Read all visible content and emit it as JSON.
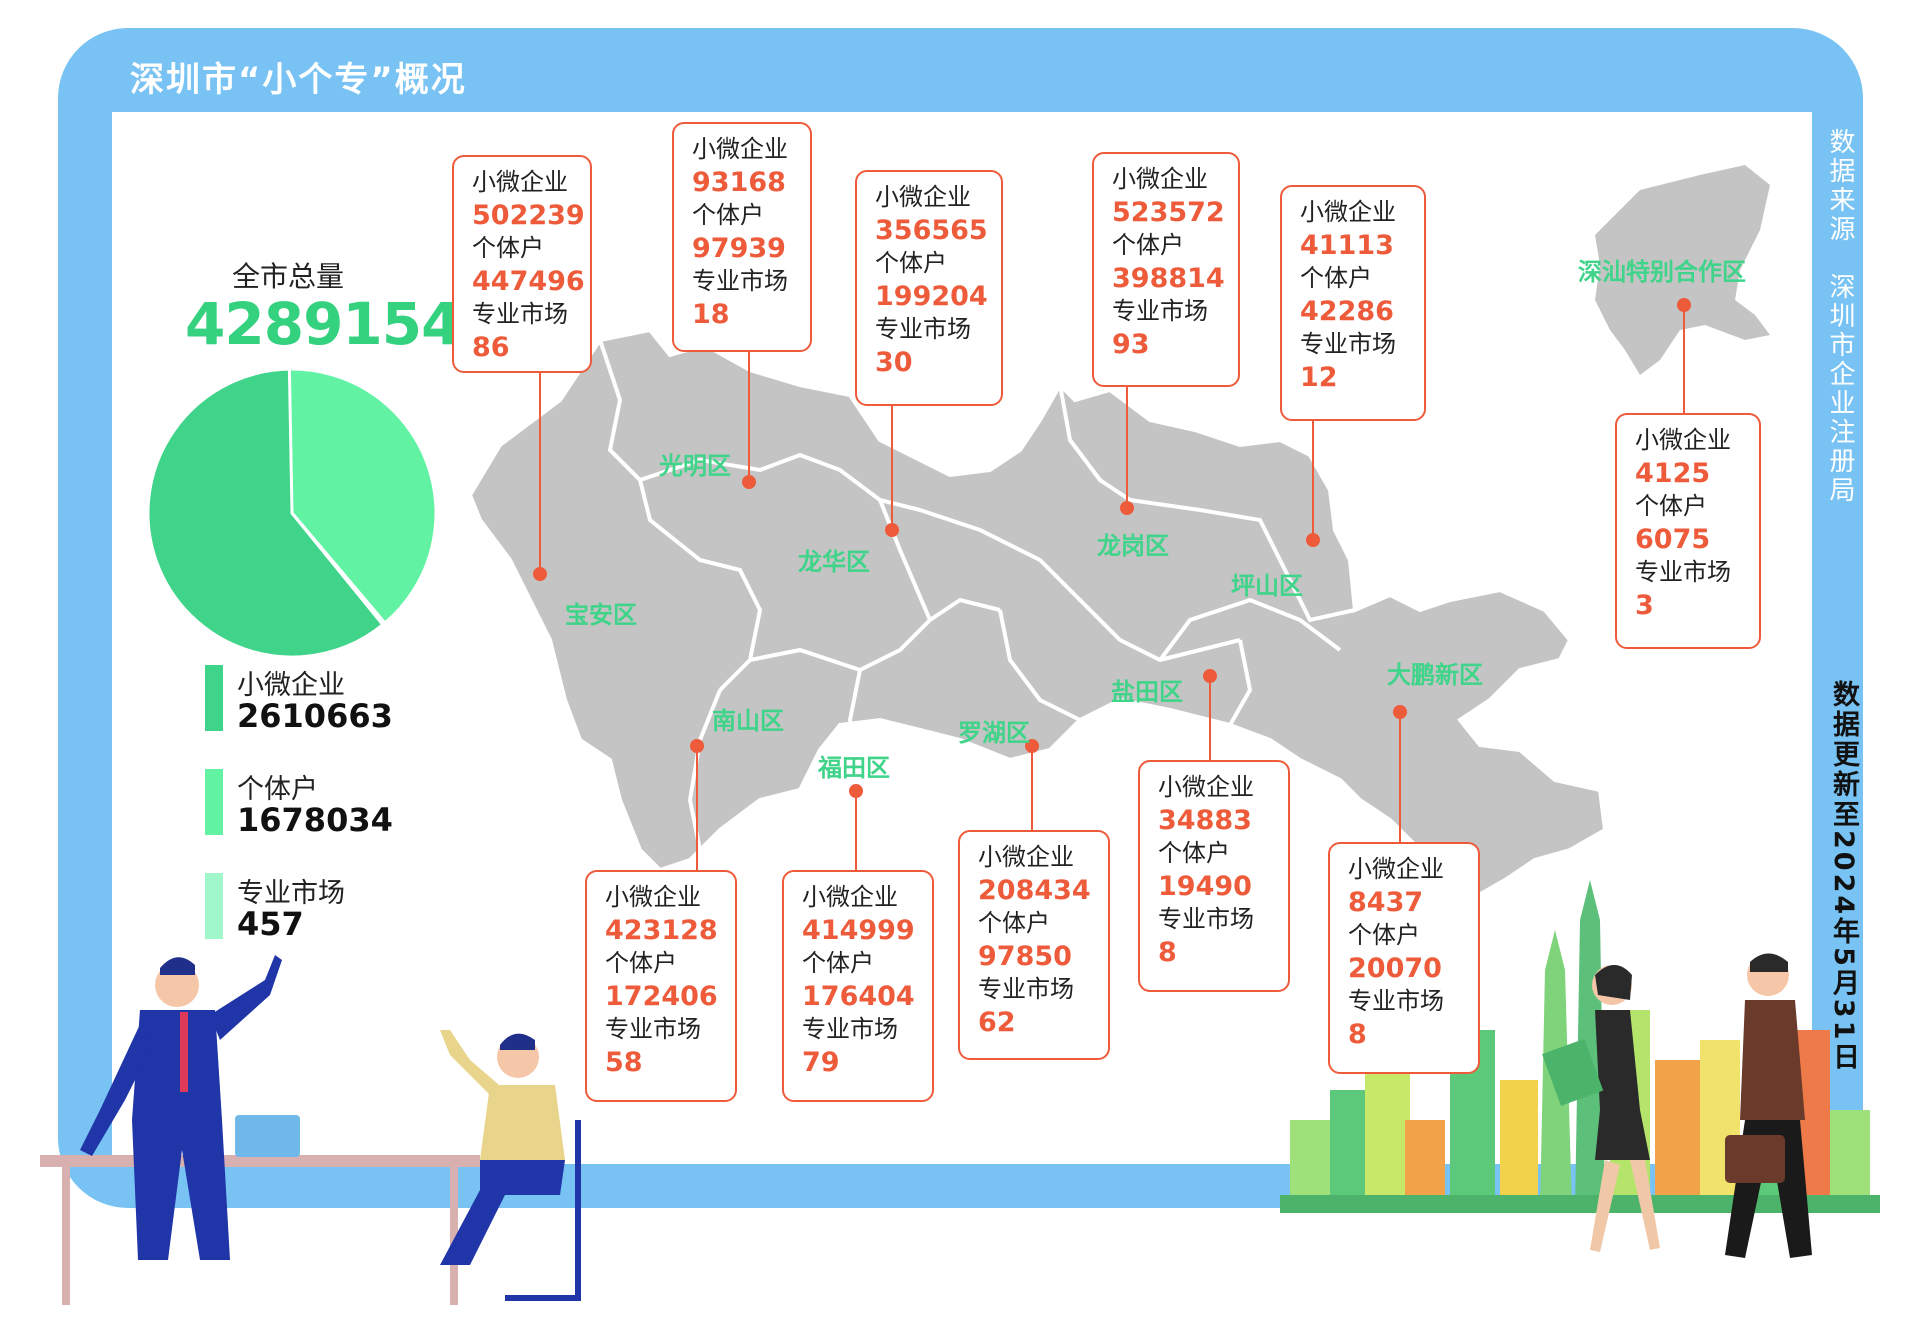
{
  "title": "深圳市“小个专”概况",
  "source": "数据来源　深圳市企业注册局",
  "update": "数据更新至2024年5月31日",
  "colors": {
    "frame": "#78c3f3",
    "accent": "#ee5b3b",
    "green": "#3fd489",
    "map": "#c4c4c4"
  },
  "chart_data": {
    "type": "pie",
    "title": "全市总量",
    "total": "4289154",
    "slices": [
      {
        "name": "小微企业",
        "value": 2610663,
        "display": "2610663",
        "color": "#3fd489"
      },
      {
        "name": "个体户",
        "value": 1678034,
        "display": "1678034",
        "color": "#62f2a4"
      },
      {
        "name": "专业市场",
        "value": 457,
        "display": "457",
        "color": "#9ff7cb"
      }
    ]
  },
  "labels": {
    "micro": "小微企业",
    "indiv": "个体户",
    "market": "专业市场"
  },
  "districts": [
    {
      "name": "宝安区",
      "micro": "502239",
      "indiv": "447496",
      "market": "86"
    },
    {
      "name": "光明区",
      "micro": "93168",
      "indiv": "97939",
      "market": "18"
    },
    {
      "name": "龙华区",
      "micro": "356565",
      "indiv": "199204",
      "market": "30"
    },
    {
      "name": "龙岗区",
      "micro": "523572",
      "indiv": "398814",
      "market": "93"
    },
    {
      "name": "坪山区",
      "micro": "41113",
      "indiv": "42286",
      "market": "12"
    },
    {
      "name": "深汕特别合作区",
      "micro": "4125",
      "indiv": "6075",
      "market": "3"
    },
    {
      "name": "南山区",
      "micro": "423128",
      "indiv": "172406",
      "market": "58"
    },
    {
      "name": "福田区",
      "micro": "414999",
      "indiv": "176404",
      "market": "79"
    },
    {
      "name": "罗湖区",
      "micro": "208434",
      "indiv": "97850",
      "market": "62"
    },
    {
      "name": "盐田区",
      "micro": "34883",
      "indiv": "19490",
      "market": "8"
    },
    {
      "name": "大鹏新区",
      "micro": "8437",
      "indiv": "20070",
      "market": "8"
    }
  ]
}
